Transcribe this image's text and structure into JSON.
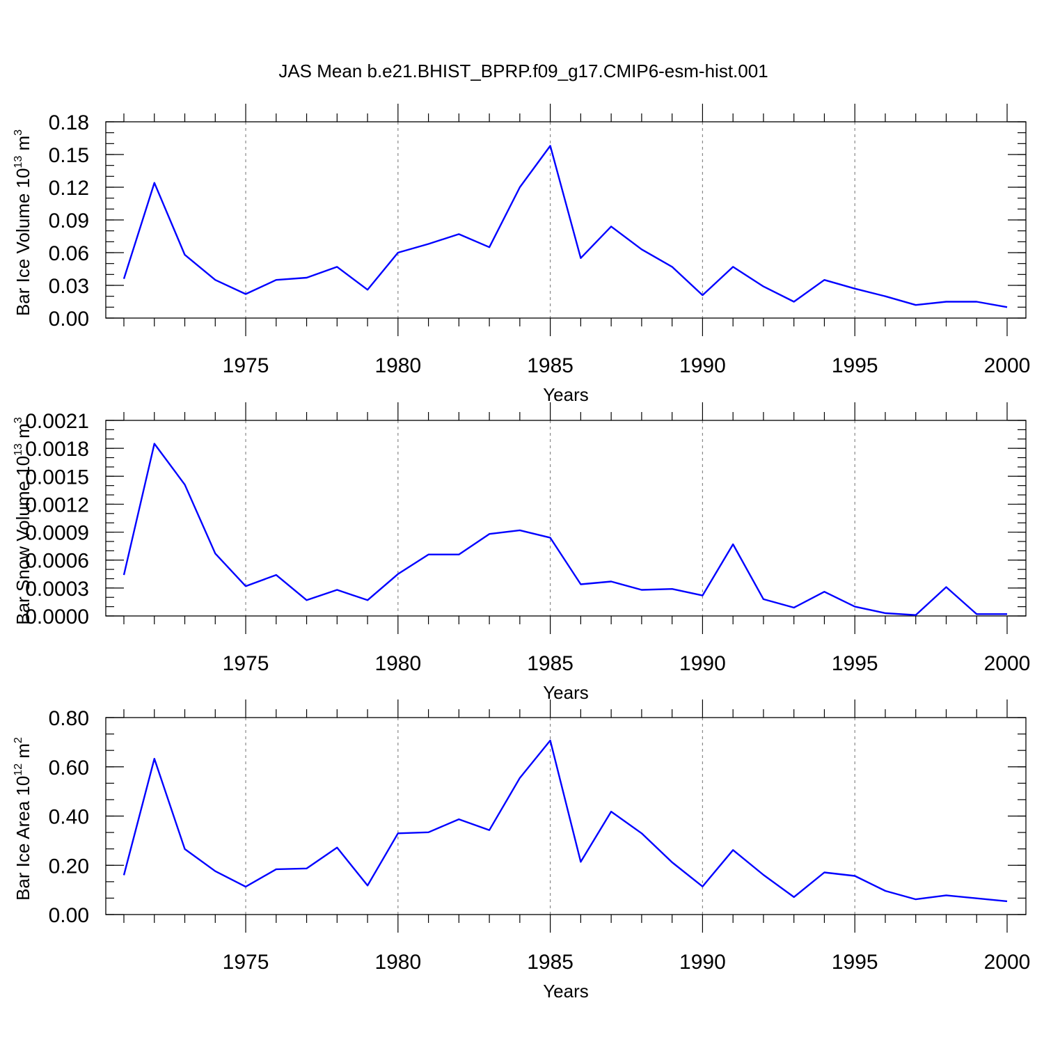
{
  "figure": {
    "title": "JAS Mean b.e21.BHIST_BPRP.f09_g17.CMIP6-esm-hist.001"
  },
  "colors": {
    "series": "#0000ff",
    "frame": "#000000",
    "grid": "#888888"
  },
  "chart_data": [
    {
      "type": "line",
      "title": "",
      "xlabel": "Years",
      "ylabel": "Bar Ice Volume 10",
      "ylabel_sup": "13",
      "ylabel_unit": " m",
      "ylabel_unit_sup": "3",
      "xlim": [
        1971,
        2000
      ],
      "ylim": [
        0,
        0.18
      ],
      "xticks": [
        1975,
        1980,
        1985,
        1990,
        1995,
        2000
      ],
      "xtick_labels": [
        "1975",
        "1980",
        "1985",
        "1990",
        "1995",
        "2000"
      ],
      "yticks": [
        0,
        0.03,
        0.06,
        0.09,
        0.12,
        0.15,
        0.18
      ],
      "ytick_labels": [
        "0.00",
        "0.03",
        "0.06",
        "0.09",
        "0.12",
        "0.15",
        "0.18"
      ],
      "grid": "x dashed",
      "x": [
        1971,
        1972,
        1973,
        1974,
        1975,
        1976,
        1977,
        1978,
        1979,
        1980,
        1981,
        1982,
        1983,
        1984,
        1985,
        1986,
        1987,
        1988,
        1989,
        1990,
        1991,
        1992,
        1993,
        1994,
        1995,
        1996,
        1997,
        1998,
        1999,
        2000
      ],
      "values": [
        0.036,
        0.124,
        0.058,
        0.035,
        0.022,
        0.035,
        0.037,
        0.047,
        0.026,
        0.06,
        0.068,
        0.077,
        0.065,
        0.12,
        0.158,
        0.055,
        0.084,
        0.063,
        0.047,
        0.021,
        0.047,
        0.029,
        0.015,
        0.035,
        0.027,
        0.02,
        0.012,
        0.015,
        0.015,
        0.01
      ]
    },
    {
      "type": "line",
      "title": "",
      "xlabel": "Years",
      "ylabel": "Bar Snow Volume 10",
      "ylabel_sup": "13",
      "ylabel_unit": " m",
      "ylabel_unit_sup": "3",
      "xlim": [
        1971,
        2000
      ],
      "ylim": [
        0,
        0.0021
      ],
      "xticks": [
        1975,
        1980,
        1985,
        1990,
        1995,
        2000
      ],
      "xtick_labels": [
        "1975",
        "1980",
        "1985",
        "1990",
        "1995",
        "2000"
      ],
      "yticks": [
        0,
        0.0003,
        0.0006,
        0.0009,
        0.0012,
        0.0015,
        0.0018,
        0.0021
      ],
      "ytick_labels": [
        "0.0000",
        "0.0003",
        "0.0006",
        "0.0009",
        "0.0012",
        "0.0015",
        "0.0018",
        "0.0021"
      ],
      "grid": "x dashed",
      "x": [
        1971,
        1972,
        1973,
        1974,
        1975,
        1976,
        1977,
        1978,
        1979,
        1980,
        1981,
        1982,
        1983,
        1984,
        1985,
        1986,
        1987,
        1988,
        1989,
        1990,
        1991,
        1992,
        1993,
        1994,
        1995,
        1996,
        1997,
        1998,
        1999,
        2000
      ],
      "values": [
        0.00044,
        0.00185,
        0.00141,
        0.00067,
        0.00032,
        0.00044,
        0.00017,
        0.00028,
        0.00017,
        0.00045,
        0.00066,
        0.00066,
        0.00088,
        0.00092,
        0.00084,
        0.00034,
        0.00037,
        0.00028,
        0.00029,
        0.00022,
        0.00077,
        0.00018,
        9e-05,
        0.00026,
        0.0001,
        3e-05,
        1e-05,
        0.00031,
        2e-05,
        2e-05
      ]
    },
    {
      "type": "line",
      "title": "",
      "xlabel": "Years",
      "ylabel": "Bar Ice Area 10",
      "ylabel_sup": "12",
      "ylabel_unit": " m",
      "ylabel_unit_sup": "2",
      "xlim": [
        1971,
        2000
      ],
      "ylim": [
        0,
        0.8
      ],
      "xticks": [
        1975,
        1980,
        1985,
        1990,
        1995,
        2000
      ],
      "xtick_labels": [
        "1975",
        "1980",
        "1985",
        "1990",
        "1995",
        "2000"
      ],
      "yticks": [
        0,
        0.2,
        0.4,
        0.6,
        0.8
      ],
      "ytick_labels": [
        "0.00",
        "0.20",
        "0.40",
        "0.60",
        "0.80"
      ],
      "grid": "x dashed",
      "x": [
        1971,
        1972,
        1973,
        1974,
        1975,
        1976,
        1977,
        1978,
        1979,
        1980,
        1981,
        1982,
        1983,
        1984,
        1985,
        1986,
        1987,
        1988,
        1989,
        1990,
        1991,
        1992,
        1993,
        1994,
        1995,
        1996,
        1997,
        1998,
        1999,
        2000
      ],
      "values": [
        0.16,
        0.633,
        0.266,
        0.176,
        0.113,
        0.184,
        0.187,
        0.272,
        0.118,
        0.33,
        0.334,
        0.387,
        0.343,
        0.555,
        0.707,
        0.214,
        0.418,
        0.33,
        0.212,
        0.114,
        0.262,
        0.161,
        0.071,
        0.171,
        0.157,
        0.096,
        0.062,
        0.078,
        0.066,
        0.054
      ]
    }
  ]
}
